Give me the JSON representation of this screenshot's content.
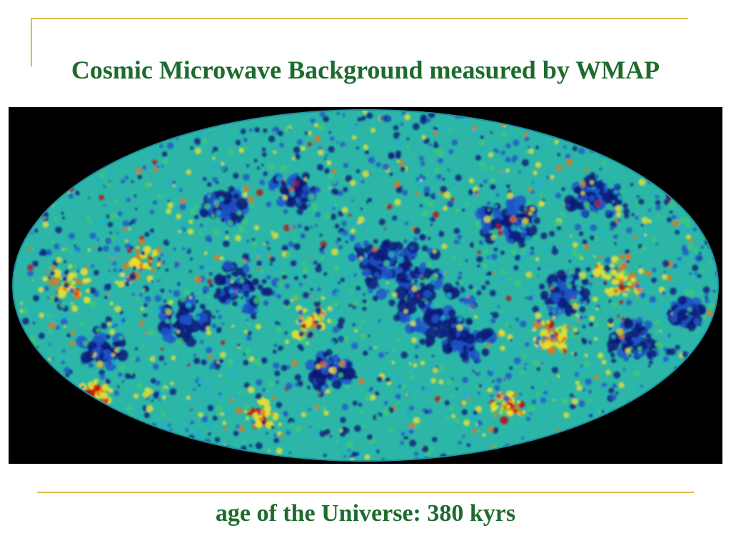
{
  "slide": {
    "title": "Cosmic Microwave Background measured by WMAP",
    "caption": "age of the Universe: 380 kyrs"
  },
  "colors": {
    "text": "#1e6b2e",
    "accent_line": "#e6b84a",
    "background": "#ffffff",
    "map_background": "#000000",
    "map_palette": [
      "#0a1a78",
      "#1f55c8",
      "#22b0c8",
      "#40c878",
      "#e8e030",
      "#e07820",
      "#c01010"
    ]
  },
  "image": {
    "subject": "cmb-sky-map"
  }
}
